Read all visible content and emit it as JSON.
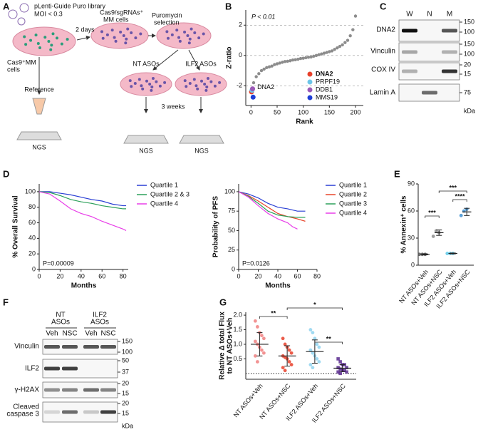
{
  "letters": [
    "A",
    "B",
    "C",
    "D",
    "E",
    "F",
    "G"
  ],
  "schematic": {
    "library": "pLenti-Guide Puro library",
    "moi": "MOI < 0.3",
    "start": [
      "Cas9⁺MM",
      "cells"
    ],
    "step1": "2 days",
    "mid": [
      "Cas9/sgRNAs⁺",
      "MM cells"
    ],
    "step2": [
      "Puromycin",
      "selection"
    ],
    "reference": "Reference",
    "nt": "NT ASOs",
    "ilf2": "ILF2 ASOs",
    "step3": "3 weeks",
    "ngs": [
      "NGS",
      "NGS",
      "NGS"
    ]
  },
  "blot_c": {
    "lanes": [
      "W",
      "N",
      "M"
    ],
    "rows": [
      "DNA2",
      "Vinculin",
      "COX IV",
      "Lamin A"
    ],
    "markers": [
      150,
      100,
      150,
      100,
      20,
      15,
      75
    ],
    "unit": "kDa"
  },
  "blot_f": {
    "groups": [
      [
        "NT",
        "ASOs"
      ],
      [
        "ILF2",
        "ASOs"
      ]
    ],
    "lanes": [
      "Veh",
      "NSC",
      "Veh",
      "NSC"
    ],
    "rows": [
      [
        "Vinculin"
      ],
      [
        "ILF2"
      ],
      [
        "γ-H2AX"
      ],
      [
        "Cleaved",
        "caspase 3"
      ]
    ],
    "markers": [
      150,
      100,
      50,
      37,
      20,
      15,
      20,
      15
    ],
    "unit": "kDa"
  },
  "chart_data": [
    {
      "type": "scatter",
      "ylabel": [
        "Z-ratio"
      ],
      "xlabel": "Rank",
      "annotations": [
        "P < 0.01",
        "DNA2"
      ],
      "x": [
        5,
        10,
        15,
        20,
        25,
        30,
        35,
        40,
        45,
        50,
        55,
        60,
        65,
        70,
        75,
        80,
        85,
        90,
        95,
        100,
        105,
        110,
        115,
        120,
        125,
        130,
        135,
        140,
        145,
        150,
        155,
        160,
        165,
        170,
        175,
        180,
        185,
        190,
        195,
        200
      ],
      "values": [
        -1.8,
        -1.4,
        -1.2,
        -1.0,
        -0.9,
        -0.8,
        -0.75,
        -0.7,
        -0.6,
        -0.55,
        -0.5,
        -0.45,
        -0.4,
        -0.38,
        -0.35,
        -0.3,
        -0.28,
        -0.25,
        -0.2,
        -0.18,
        -0.15,
        -0.12,
        -0.1,
        -0.05,
        0,
        0.05,
        0.1,
        0.15,
        0.2,
        0.25,
        0.3,
        0.4,
        0.5,
        0.6,
        0.7,
        0.85,
        1.0,
        1.3,
        1.7,
        2.6
      ],
      "color": "#8c8c8c",
      "series": [
        {
          "name": "DNA2",
          "color": "#e8402a",
          "x": [
            1
          ],
          "values": [
            -2.4
          ]
        },
        {
          "name": "PRPF19",
          "color": "#6cc5e8",
          "x": [
            2
          ],
          "values": [
            -2.3
          ]
        },
        {
          "name": "DDB1",
          "color": "#9b59b6",
          "x": [
            3
          ],
          "values": [
            -2.2
          ]
        },
        {
          "name": "MMS19",
          "color": "#1f3fd6",
          "x": [
            4
          ],
          "values": [
            -2.75
          ]
        }
      ],
      "xlim": [
        -10,
        215
      ],
      "ylim": [
        -3.3,
        3
      ],
      "xticks": [
        0,
        50,
        100,
        150,
        200
      ],
      "yticks": [
        -2,
        0,
        2
      ],
      "grid": true,
      "legend": "lower right"
    },
    {
      "type": "line",
      "ylabel": [
        "% Overall Survival"
      ],
      "xlabel": "Months",
      "annotations": [
        "P=0.00009"
      ],
      "series": [
        {
          "name": "Quartile 1",
          "color": "#2a3fd4",
          "x": [
            0,
            10,
            20,
            30,
            40,
            50,
            60,
            70,
            80,
            83
          ],
          "values": [
            100,
            100,
            98,
            96,
            93,
            90,
            88,
            84,
            82,
            82
          ]
        },
        {
          "name": "Quartile 2 & 3",
          "color": "#2ca05a",
          "x": [
            0,
            10,
            20,
            30,
            40,
            50,
            60,
            70,
            80,
            83
          ],
          "values": [
            100,
            99,
            95,
            90,
            87,
            85,
            82,
            80,
            78,
            78
          ]
        },
        {
          "name": "Quartile 4",
          "color": "#e83ee8",
          "x": [
            0,
            10,
            20,
            30,
            40,
            50,
            60,
            70,
            80,
            83
          ],
          "values": [
            100,
            97,
            88,
            78,
            72,
            68,
            62,
            57,
            52,
            50
          ]
        }
      ],
      "xlim": [
        0,
        85
      ],
      "ylim": [
        0,
        110
      ],
      "xticks": [
        0,
        20,
        40,
        60,
        80
      ],
      "yticks": [
        0,
        20,
        40,
        60,
        80,
        100
      ],
      "legend": "right"
    },
    {
      "type": "line",
      "ylabel": [
        "Probability of PFS"
      ],
      "xlabel": "Months",
      "annotations": [
        "P=0.0126"
      ],
      "series": [
        {
          "name": "Quartile 1",
          "color": "#2a3fd4",
          "x": [
            0,
            10,
            20,
            30,
            40,
            50,
            60,
            68
          ],
          "values": [
            100,
            97,
            92,
            85,
            80,
            78,
            75,
            75
          ]
        },
        {
          "name": "Quartile 2",
          "color": "#e8452a",
          "x": [
            0,
            10,
            20,
            30,
            40,
            50,
            60,
            68
          ],
          "values": [
            100,
            95,
            88,
            80,
            72,
            68,
            65,
            62
          ]
        },
        {
          "name": "Quartile 3",
          "color": "#2ca05a",
          "x": [
            0,
            10,
            20,
            30,
            40,
            50,
            60,
            68
          ],
          "values": [
            100,
            94,
            85,
            75,
            70,
            68,
            67,
            67
          ]
        },
        {
          "name": "Quartile 4",
          "color": "#e83ee8",
          "x": [
            0,
            10,
            20,
            30,
            40,
            50,
            55,
            60
          ],
          "values": [
            100,
            93,
            82,
            72,
            65,
            60,
            55,
            52
          ]
        }
      ],
      "xlim": [
        0,
        80
      ],
      "ylim": [
        0,
        110
      ],
      "xticks": [
        0,
        20,
        40,
        60,
        80
      ],
      "yticks": [
        0,
        25,
        50,
        75,
        100
      ],
      "legend": "right"
    },
    {
      "type": "dot",
      "ylabel": [
        "% Annexin⁺ cells"
      ],
      "categories": [
        "NT ASOs+Veh",
        "NT ASOs+NSC",
        "ILF2 ASOs+Veh",
        "ILF2 ASOs+NSC"
      ],
      "points": [
        [
          12,
          12,
          12
        ],
        [
          32,
          38,
          36
        ],
        [
          13,
          13,
          13
        ],
        [
          55,
          60,
          62
        ]
      ],
      "means": [
        12,
        36,
        13,
        59
      ],
      "sd": [
        0.5,
        3,
        0.5,
        4
      ],
      "colors": [
        "#555555",
        "#8c8c8c",
        "#5bc8e8",
        "#3d8fd0"
      ],
      "ylim": [
        0,
        90
      ],
      "yticks": [
        0,
        30,
        60,
        90
      ],
      "significance": [
        "***",
        "***",
        "****"
      ]
    },
    {
      "type": "dot",
      "ylabel": [
        "Relative Δ total Flux",
        "to NT ASOs+Veh"
      ],
      "categories": [
        "NT ASOs+Veh",
        "NT ASOs+NSC",
        "ILF2 ASOs+Veh",
        "ILF2 ASOs+NSC"
      ],
      "points": [
        [
          1.8,
          1.6,
          1.4,
          1.3,
          1.2,
          1.1,
          1.0,
          0.9,
          0.8,
          0.7,
          0.6,
          0.4
        ],
        [
          1.2,
          1.0,
          0.9,
          0.8,
          0.7,
          0.6,
          0.55,
          0.5,
          0.4,
          0.3,
          0.2,
          0.1
        ],
        [
          1.5,
          1.4,
          1.2,
          1.0,
          0.9,
          0.8,
          0.7,
          0.6,
          0.5,
          0.4,
          0.3,
          0.2
        ],
        [
          0.5,
          0.4,
          0.3,
          0.3,
          0.2,
          0.2,
          0.15,
          0.1,
          0.1,
          0.05,
          0.05,
          0.0
        ]
      ],
      "means": [
        1.0,
        0.6,
        0.75,
        0.18
      ],
      "sd": [
        0.4,
        0.35,
        0.4,
        0.12
      ],
      "colors": [
        "#f08080",
        "#e8402a",
        "#8fd3f0",
        "#5b2c8f"
      ],
      "ylim": [
        -0.2,
        2.1
      ],
      "yticks": [
        0.5,
        {
          "value": 1,
          "label": "1.0"
        },
        1.5,
        {
          "value": 2,
          "label": "2.0"
        }
      ],
      "significance": [
        "**",
        "*",
        "**"
      ]
    }
  ]
}
